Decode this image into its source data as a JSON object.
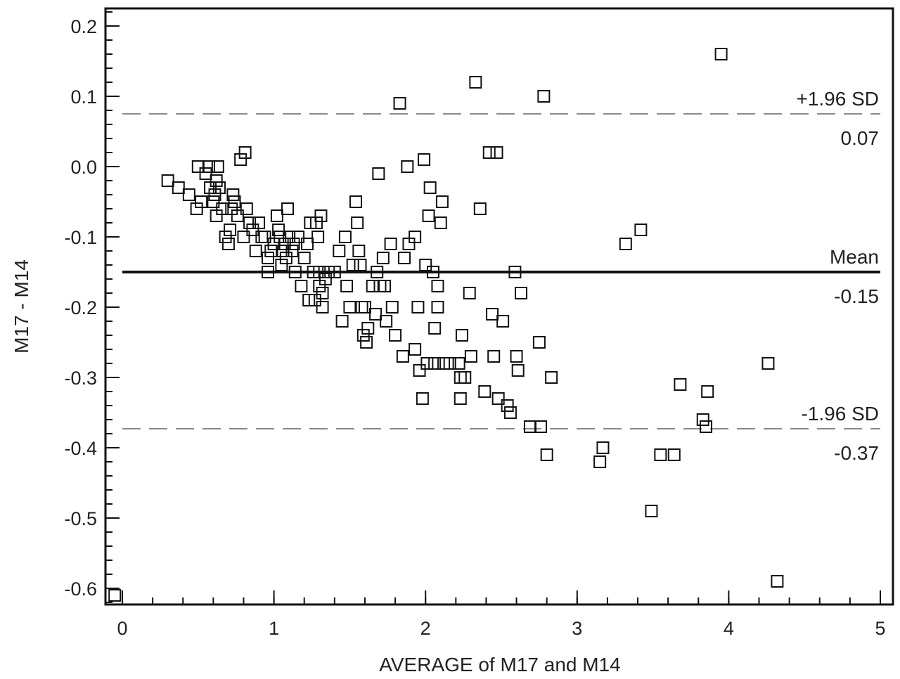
{
  "chart_data": {
    "type": "scatter",
    "title": "",
    "xlabel": "AVERAGE of M17 and M14",
    "ylabel": "M17 - M14",
    "xlim": [
      0,
      5
    ],
    "ylim": [
      -0.62,
      0.225
    ],
    "x_ticks": [
      0,
      1,
      2,
      3,
      4,
      5
    ],
    "x_tick_labels": [
      "0",
      "1",
      "2",
      "3",
      "4",
      "5"
    ],
    "y_ticks": [
      0.2,
      0.1,
      0.0,
      -0.1,
      -0.2,
      -0.3,
      -0.4,
      -0.5,
      -0.6
    ],
    "y_tick_labels": [
      "0.2",
      "0.1",
      "0.0",
      "-0.1",
      "-0.2",
      "-0.3",
      "-0.4",
      "-0.5",
      "-0.6"
    ],
    "grid": false,
    "marker": "square-open",
    "reference_lines": [
      {
        "label": "+1.96 SD",
        "value_label": "0.07",
        "y": 0.075,
        "style": "dashed"
      },
      {
        "label": "Mean",
        "value_label": "-0.15",
        "y": -0.15,
        "style": "solid"
      },
      {
        "label": "-1.96 SD",
        "value_label": "-0.37",
        "y": -0.373,
        "style": "dashed"
      }
    ],
    "points": [
      [
        0.3,
        -0.02
      ],
      [
        0.37,
        -0.03
      ],
      [
        0.44,
        -0.04
      ],
      [
        0.49,
        -0.06
      ],
      [
        0.5,
        0.0
      ],
      [
        0.52,
        -0.05
      ],
      [
        0.55,
        -0.01
      ],
      [
        0.57,
        0.0
      ],
      [
        0.58,
        -0.03
      ],
      [
        0.6,
        -0.05
      ],
      [
        0.61,
        -0.04
      ],
      [
        0.62,
        -0.02
      ],
      [
        0.63,
        0.0
      ],
      [
        0.62,
        -0.07
      ],
      [
        0.64,
        -0.03
      ],
      [
        0.66,
        -0.06
      ],
      [
        0.68,
        -0.1
      ],
      [
        0.7,
        -0.11
      ],
      [
        0.71,
        -0.09
      ],
      [
        0.72,
        -0.06
      ],
      [
        0.73,
        -0.04
      ],
      [
        0.74,
        -0.05
      ],
      [
        0.76,
        -0.07
      ],
      [
        0.78,
        0.01
      ],
      [
        0.8,
        -0.1
      ],
      [
        0.81,
        0.02
      ],
      [
        0.82,
        -0.06
      ],
      [
        0.84,
        -0.08
      ],
      [
        0.86,
        -0.09
      ],
      [
        0.88,
        -0.12
      ],
      [
        0.9,
        -0.08
      ],
      [
        0.92,
        -0.1
      ],
      [
        0.94,
        -0.1
      ],
      [
        0.96,
        -0.13
      ],
      [
        0.96,
        -0.15
      ],
      [
        0.98,
        -0.12
      ],
      [
        1.0,
        -0.11
      ],
      [
        1.02,
        -0.07
      ],
      [
        1.03,
        -0.09
      ],
      [
        1.04,
        -0.1
      ],
      [
        1.05,
        -0.14
      ],
      [
        1.06,
        -0.12
      ],
      [
        1.07,
        -0.11
      ],
      [
        1.08,
        -0.13
      ],
      [
        1.09,
        -0.06
      ],
      [
        1.1,
        -0.1
      ],
      [
        1.12,
        -0.12
      ],
      [
        1.13,
        -0.11
      ],
      [
        1.14,
        -0.15
      ],
      [
        1.16,
        -0.1
      ],
      [
        1.18,
        -0.17
      ],
      [
        1.2,
        -0.13
      ],
      [
        1.22,
        -0.11
      ],
      [
        1.23,
        -0.19
      ],
      [
        1.24,
        -0.08
      ],
      [
        1.26,
        -0.15
      ],
      [
        1.27,
        -0.19
      ],
      [
        1.28,
        -0.08
      ],
      [
        1.29,
        -0.1
      ],
      [
        1.3,
        -0.15
      ],
      [
        1.3,
        -0.17
      ],
      [
        1.31,
        -0.07
      ],
      [
        1.32,
        -0.18
      ],
      [
        1.32,
        -0.2
      ],
      [
        1.34,
        -0.16
      ],
      [
        1.36,
        -0.15
      ],
      [
        1.4,
        -0.15
      ],
      [
        1.43,
        -0.12
      ],
      [
        1.45,
        -0.22
      ],
      [
        1.47,
        -0.1
      ],
      [
        1.48,
        -0.17
      ],
      [
        1.5,
        -0.2
      ],
      [
        1.52,
        -0.14
      ],
      [
        1.54,
        -0.05
      ],
      [
        1.55,
        -0.08
      ],
      [
        1.56,
        -0.12
      ],
      [
        1.57,
        -0.14
      ],
      [
        1.58,
        -0.2
      ],
      [
        1.59,
        -0.24
      ],
      [
        1.6,
        -0.2
      ],
      [
        1.61,
        -0.25
      ],
      [
        1.62,
        -0.23
      ],
      [
        1.65,
        -0.17
      ],
      [
        1.67,
        -0.21
      ],
      [
        1.68,
        -0.15
      ],
      [
        1.69,
        -0.01
      ],
      [
        1.7,
        -0.17
      ],
      [
        1.72,
        -0.13
      ],
      [
        1.73,
        -0.17
      ],
      [
        1.74,
        -0.22
      ],
      [
        1.77,
        -0.11
      ],
      [
        1.78,
        -0.2
      ],
      [
        1.8,
        -0.24
      ],
      [
        1.83,
        0.09
      ],
      [
        1.85,
        -0.27
      ],
      [
        1.86,
        -0.13
      ],
      [
        1.88,
        0.0
      ],
      [
        1.89,
        -0.11
      ],
      [
        1.93,
        -0.1
      ],
      [
        1.93,
        -0.26
      ],
      [
        1.95,
        -0.2
      ],
      [
        1.96,
        -0.29
      ],
      [
        1.98,
        -0.33
      ],
      [
        1.99,
        0.01
      ],
      [
        2.0,
        -0.14
      ],
      [
        2.01,
        -0.28
      ],
      [
        2.02,
        -0.07
      ],
      [
        2.03,
        -0.03
      ],
      [
        2.05,
        -0.15
      ],
      [
        2.06,
        -0.28
      ],
      [
        2.06,
        -0.23
      ],
      [
        2.08,
        -0.17
      ],
      [
        2.08,
        -0.2
      ],
      [
        2.1,
        -0.08
      ],
      [
        2.11,
        -0.05
      ],
      [
        2.12,
        -0.28
      ],
      [
        2.16,
        -0.28
      ],
      [
        2.22,
        -0.28
      ],
      [
        2.23,
        -0.3
      ],
      [
        2.24,
        -0.24
      ],
      [
        2.23,
        -0.33
      ],
      [
        2.26,
        -0.3
      ],
      [
        2.29,
        -0.18
      ],
      [
        2.3,
        -0.27
      ],
      [
        2.33,
        0.12
      ],
      [
        2.36,
        -0.06
      ],
      [
        2.39,
        -0.32
      ],
      [
        2.42,
        0.02
      ],
      [
        2.44,
        -0.21
      ],
      [
        2.45,
        -0.27
      ],
      [
        2.47,
        0.02
      ],
      [
        2.48,
        -0.33
      ],
      [
        2.51,
        -0.22
      ],
      [
        2.54,
        -0.34
      ],
      [
        2.56,
        -0.35
      ],
      [
        2.59,
        -0.15
      ],
      [
        2.6,
        -0.27
      ],
      [
        2.61,
        -0.29
      ],
      [
        2.63,
        -0.18
      ],
      [
        2.69,
        -0.37
      ],
      [
        2.75,
        -0.25
      ],
      [
        2.76,
        -0.37
      ],
      [
        2.78,
        0.1
      ],
      [
        2.8,
        -0.41
      ],
      [
        2.83,
        -0.3
      ],
      [
        3.15,
        -0.42
      ],
      [
        3.17,
        -0.4
      ],
      [
        3.32,
        -0.11
      ],
      [
        3.42,
        -0.09
      ],
      [
        3.49,
        -0.49
      ],
      [
        3.55,
        -0.41
      ],
      [
        3.64,
        -0.41
      ],
      [
        3.68,
        -0.31
      ],
      [
        3.83,
        -0.36
      ],
      [
        3.85,
        -0.37
      ],
      [
        3.86,
        -0.32
      ],
      [
        3.95,
        0.16
      ],
      [
        4.26,
        -0.28
      ],
      [
        4.32,
        -0.59
      ],
      [
        -0.05,
        -0.61
      ]
    ]
  }
}
